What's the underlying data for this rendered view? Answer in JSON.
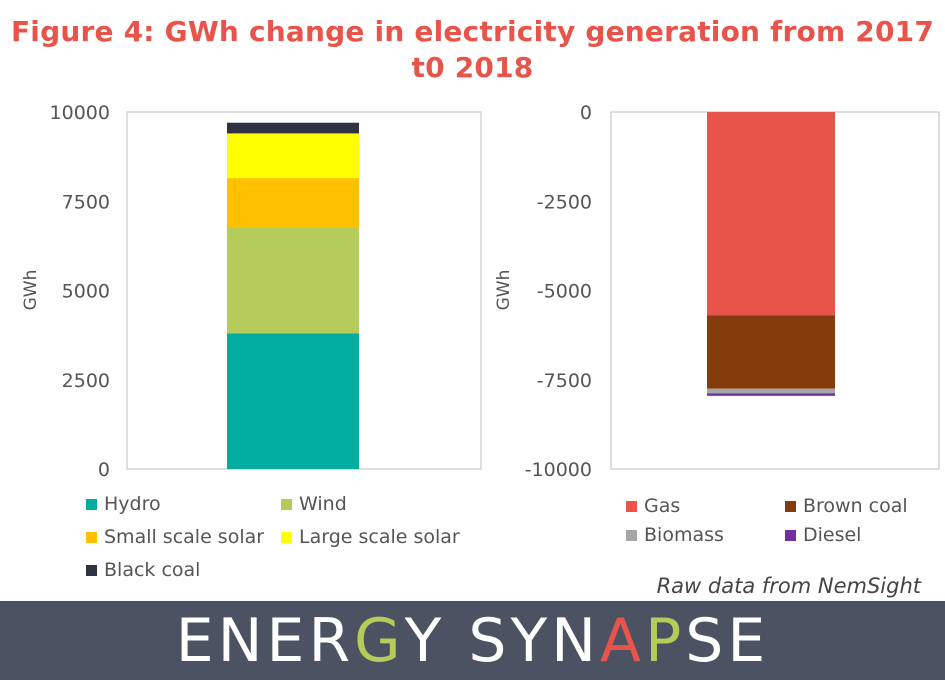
{
  "title": "Figure 4: GWh change in electricity generation from 2017 t0 2018",
  "source_note": "Raw data from NemSight",
  "brand": {
    "text": "ENERGY SYNAPSE",
    "letters": [
      {
        "ch": "E",
        "color": "#ffffff"
      },
      {
        "ch": "N",
        "color": "#ffffff"
      },
      {
        "ch": "E",
        "color": "#ffffff"
      },
      {
        "ch": "R",
        "color": "#ffffff"
      },
      {
        "ch": "G",
        "color": "#b5cc5a"
      },
      {
        "ch": "Y",
        "color": "#ffffff"
      },
      {
        "ch": " ",
        "color": "#ffffff"
      },
      {
        "ch": "S",
        "color": "#ffffff"
      },
      {
        "ch": "Y",
        "color": "#ffffff"
      },
      {
        "ch": "N",
        "color": "#ffffff"
      },
      {
        "ch": "A",
        "color": "#e8534a"
      },
      {
        "ch": "P",
        "color": "#b5cc5a"
      },
      {
        "ch": "S",
        "color": "#ffffff"
      },
      {
        "ch": "E",
        "color": "#ffffff"
      }
    ]
  },
  "chart_data": [
    {
      "type": "bar",
      "stacked": true,
      "ylabel": "GWh",
      "ylim": [
        0,
        10000
      ],
      "yticks": [
        "0",
        "2500",
        "5000",
        "7500",
        "10000"
      ],
      "categories": [
        ""
      ],
      "series": [
        {
          "name": "Hydro",
          "values": [
            3800
          ],
          "color": "#00ad9f"
        },
        {
          "name": "Wind",
          "values": [
            2950
          ],
          "color": "#b5cc5a"
        },
        {
          "name": "Small scale solar",
          "values": [
            1400
          ],
          "color": "#ffc000"
        },
        {
          "name": "Large scale solar",
          "values": [
            1250
          ],
          "color": "#ffff00"
        },
        {
          "name": "Black coal",
          "values": [
            300
          ],
          "color": "#2f3241"
        }
      ],
      "legend": "bottom"
    },
    {
      "type": "bar",
      "stacked": true,
      "ylabel": "GWh",
      "ylim": [
        -10000,
        0
      ],
      "yticks": [
        "0",
        "-2500",
        "-5000",
        "-7500",
        "-10000"
      ],
      "categories": [
        ""
      ],
      "series": [
        {
          "name": "Gas",
          "values": [
            -5700
          ],
          "color": "#e8534a"
        },
        {
          "name": "Brown coal",
          "values": [
            -2050
          ],
          "color": "#843c0c"
        },
        {
          "name": "Biomass",
          "values": [
            -130
          ],
          "color": "#a5a5a5"
        },
        {
          "name": "Diesel",
          "values": [
            -70
          ],
          "color": "#7030a0"
        }
      ],
      "legend": "bottom"
    }
  ]
}
